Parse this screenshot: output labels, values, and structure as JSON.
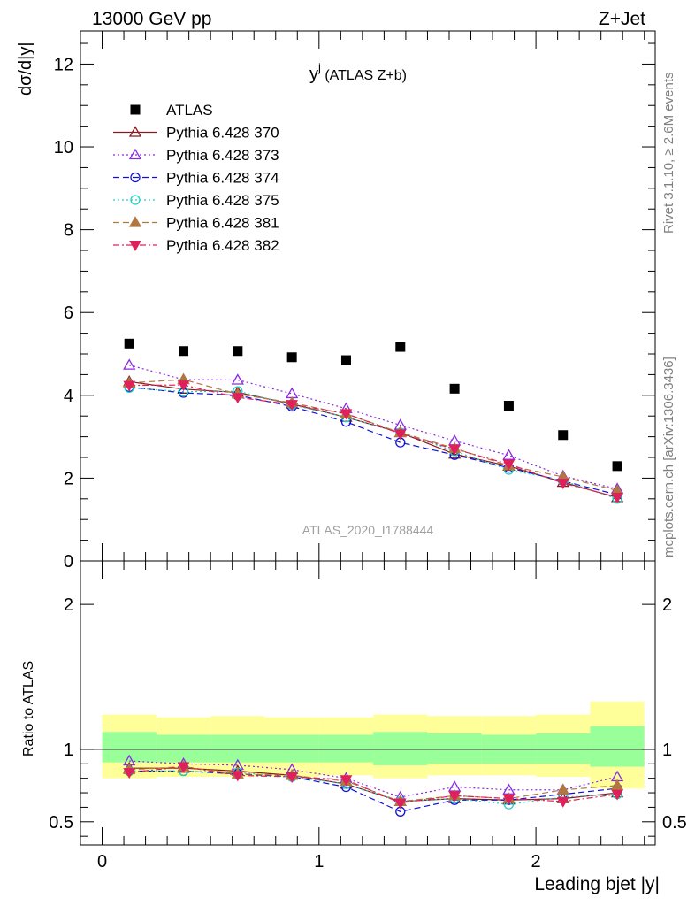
{
  "header": {
    "left": "13000 GeV pp",
    "right": "Z+Jet",
    "side_top": "Rivet 3.1.10, ≥ 2.6M events",
    "side_bottom": "mcplots.cern.ch [arXiv:1306.3436]"
  },
  "chart_data": [
    {
      "type": "scatter",
      "title_main": "y",
      "title_sup": "j",
      "title_rest": " (ATLAS Z+b)",
      "ylabel": "dσ/d|y|",
      "watermark": "ATLAS_2020_I1788444",
      "xlim": [
        -0.1,
        2.55
      ],
      "ylim": [
        0,
        12.8
      ],
      "yticks": [
        0,
        2,
        4,
        6,
        8,
        10,
        12
      ],
      "x": [
        0.125,
        0.375,
        0.625,
        0.875,
        1.125,
        1.375,
        1.625,
        1.875,
        2.125,
        2.375
      ],
      "series": [
        {
          "name": "ATLAS",
          "color": "#000000",
          "marker": "square",
          "dash": "",
          "values": [
            5.25,
            5.07,
            5.07,
            4.92,
            4.85,
            5.17,
            4.16,
            3.75,
            3.04,
            2.29
          ]
        },
        {
          "name": "Pythia 6.428 370",
          "color": "#8b1a1a",
          "marker": "triangle-open",
          "dash": "",
          "values": [
            4.33,
            4.15,
            4.07,
            3.79,
            3.47,
            3.1,
            2.58,
            2.29,
            1.9,
            1.53
          ]
        },
        {
          "name": "Pythia 6.428 373",
          "color": "#8a2be2",
          "marker": "triangle-open",
          "dash": "2,3",
          "values": [
            4.73,
            4.38,
            4.37,
            4.04,
            3.68,
            3.28,
            2.9,
            2.55,
            2.05,
            1.74
          ]
        },
        {
          "name": "Pythia 6.428 374",
          "color": "#1010d8",
          "marker": "circle-open",
          "dash": "7,4",
          "values": [
            4.2,
            4.06,
            4.0,
            3.73,
            3.36,
            2.86,
            2.56,
            2.25,
            1.93,
            1.6
          ]
        },
        {
          "name": "Pythia 6.428 375",
          "color": "#20d0c0",
          "marker": "circle-open",
          "dash": "2,3",
          "values": [
            4.18,
            4.09,
            4.1,
            3.77,
            3.47,
            3.1,
            2.65,
            2.2,
            1.94,
            1.5
          ]
        },
        {
          "name": "Pythia 6.428 381",
          "color": "#b07840",
          "marker": "triangle-filled",
          "dash": "7,4",
          "values": [
            4.3,
            4.38,
            4.03,
            3.82,
            3.55,
            3.1,
            2.72,
            2.3,
            2.03,
            1.7
          ]
        },
        {
          "name": "Pythia 6.428 382",
          "color": "#e0205a",
          "marker": "triangle-down-filled",
          "dash": "7,3,2,3",
          "values": [
            4.24,
            4.25,
            3.95,
            3.78,
            3.56,
            3.07,
            2.7,
            2.34,
            1.88,
            1.54
          ]
        }
      ]
    },
    {
      "type": "scatter",
      "ylabel": "Ratio to ATLAS",
      "xlabel": "Leading bjet |y|",
      "xlim": [
        -0.1,
        2.55
      ],
      "ylim": [
        0.34,
        2.3
      ],
      "yticks": [
        0.5,
        1,
        2
      ],
      "xticks": [
        0,
        1,
        2
      ],
      "band_edges": [
        0,
        0.25,
        0.5,
        0.75,
        1.0,
        1.25,
        1.5,
        1.75,
        2.0,
        2.25,
        2.5
      ],
      "band_yellow": [
        [
          0.8,
          1.24
        ],
        [
          0.81,
          1.22
        ],
        [
          0.81,
          1.23
        ],
        [
          0.81,
          1.22
        ],
        [
          0.82,
          1.22
        ],
        [
          0.8,
          1.24
        ],
        [
          0.82,
          1.23
        ],
        [
          0.82,
          1.23
        ],
        [
          0.81,
          1.24
        ],
        [
          0.73,
          1.33
        ]
      ],
      "band_green": [
        [
          0.91,
          1.12
        ],
        [
          0.91,
          1.1
        ],
        [
          0.91,
          1.1
        ],
        [
          0.91,
          1.1
        ],
        [
          0.91,
          1.1
        ],
        [
          0.89,
          1.12
        ],
        [
          0.9,
          1.11
        ],
        [
          0.9,
          1.1
        ],
        [
          0.9,
          1.11
        ],
        [
          0.88,
          1.16
        ]
      ],
      "x": [
        0.125,
        0.375,
        0.625,
        0.875,
        1.125,
        1.375,
        1.625,
        1.875,
        2.125,
        2.375
      ],
      "series": [
        {
          "name": "Pythia 6.428 370",
          "values": [
            0.87,
            0.87,
            0.85,
            0.82,
            0.76,
            0.64,
            0.66,
            0.65,
            0.66,
            0.7
          ]
        },
        {
          "name": "Pythia 6.428 373",
          "values": [
            0.92,
            0.9,
            0.89,
            0.86,
            0.8,
            0.67,
            0.74,
            0.72,
            0.72,
            0.81
          ]
        },
        {
          "name": "Pythia 6.428 374",
          "values": [
            0.85,
            0.85,
            0.83,
            0.81,
            0.74,
            0.57,
            0.65,
            0.65,
            0.69,
            0.73
          ]
        },
        {
          "name": "Pythia 6.428 375",
          "values": [
            0.85,
            0.85,
            0.84,
            0.81,
            0.76,
            0.64,
            0.66,
            0.62,
            0.67,
            0.69
          ]
        },
        {
          "name": "Pythia 6.428 381",
          "values": [
            0.86,
            0.88,
            0.83,
            0.82,
            0.78,
            0.64,
            0.68,
            0.66,
            0.72,
            0.75
          ]
        },
        {
          "name": "Pythia 6.428 382",
          "values": [
            0.84,
            0.88,
            0.82,
            0.81,
            0.79,
            0.63,
            0.68,
            0.66,
            0.64,
            0.69
          ]
        }
      ]
    }
  ]
}
